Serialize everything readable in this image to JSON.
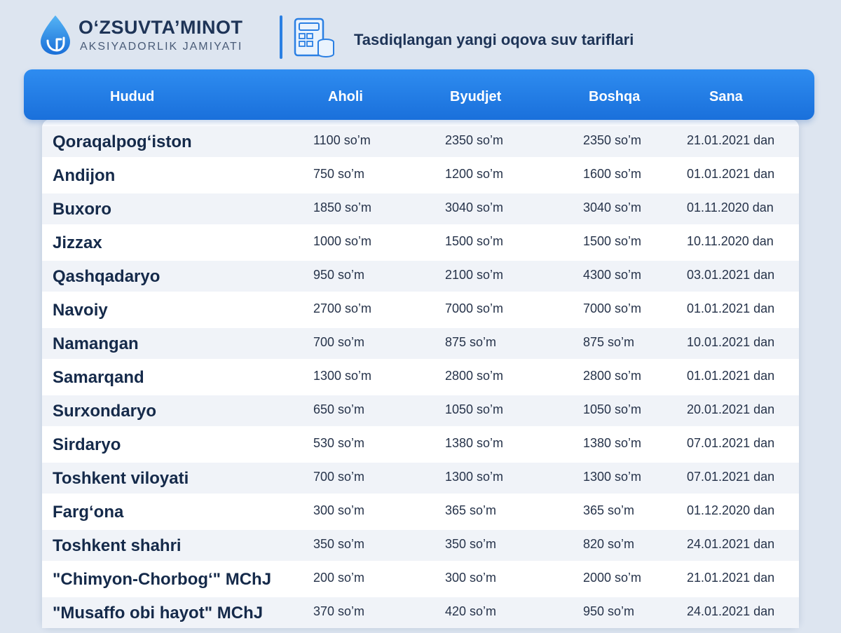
{
  "brand": {
    "name": "O‘ZSUVTA’MINOT",
    "subtitle": "AKSIYADORLIK JAMIYATI",
    "colors": {
      "primary": "#1e3457",
      "accent": "#2a7fe3"
    }
  },
  "page_title": "Tasdiqlangan yangi oqova suv tariflari",
  "icons": {
    "logo": "water-drop-logo-icon",
    "title": "calculator-coins-icon"
  },
  "table": {
    "header_color": "#2a86ea",
    "columns": [
      "Hudud",
      "Aholi",
      "Byudjet",
      "Boshqa",
      "Sana"
    ],
    "rows": [
      {
        "region": "Qoraqalpog‘iston",
        "aholi": "1100 so’m",
        "byudjet": "2350 so’m",
        "boshqa": "2350 so’m",
        "sana": "21.01.2021 dan"
      },
      {
        "region": "Andijon",
        "aholi": "750 so’m",
        "byudjet": "1200 so’m",
        "boshqa": "1600 so’m",
        "sana": "01.01.2021 dan"
      },
      {
        "region": "Buxoro",
        "aholi": "1850 so’m",
        "byudjet": "3040 so’m",
        "boshqa": "3040 so’m",
        "sana": "01.11.2020 dan"
      },
      {
        "region": "Jizzax",
        "aholi": "1000 so’m",
        "byudjet": "1500 so’m",
        "boshqa": "1500 so’m",
        "sana": "10.11.2020 dan"
      },
      {
        "region": "Qashqadaryo",
        "aholi": "950 so’m",
        "byudjet": "2100 so’m",
        "boshqa": "4300 so’m",
        "sana": "03.01.2021  dan"
      },
      {
        "region": "Navoiy",
        "aholi": "2700 so’m",
        "byudjet": "7000 so’m",
        "boshqa": "7000 so’m",
        "sana": "01.01.2021 dan"
      },
      {
        "region": "Namangan",
        "aholi": "700 so’m",
        "byudjet": "875 so’m",
        "boshqa": "875 so’m",
        "sana": "10.01.2021 dan"
      },
      {
        "region": "Samarqand",
        "aholi": "1300 so’m",
        "byudjet": "2800 so’m",
        "boshqa": "2800 so’m",
        "sana": "01.01.2021 dan"
      },
      {
        "region": "Surxondaryo",
        "aholi": "650 so’m",
        "byudjet": "1050 so’m",
        "boshqa": "1050 so’m",
        "sana": "20.01.2021 dan"
      },
      {
        "region": "Sirdaryo",
        "aholi": "530 so’m",
        "byudjet": "1380 so’m",
        "boshqa": "1380 so’m",
        "sana": "07.01.2021 dan"
      },
      {
        "region": "Toshkent viloyati",
        "aholi": "700 so’m",
        "byudjet": "1300 so’m",
        "boshqa": "1300 so’m",
        "sana": "07.01.2021 dan"
      },
      {
        "region": "Farg‘ona",
        "aholi": "300 so’m",
        "byudjet": "365 so’m",
        "boshqa": "365 so’m",
        "sana": "01.12.2020 dan"
      },
      {
        "region": "Toshkent shahri",
        "aholi": "350 so’m",
        "byudjet": "350 so’m",
        "boshqa": "820 so’m",
        "sana": "24.01.2021 dan"
      },
      {
        "region": "\"Chimyon-Chorbog‘\" MChJ",
        "aholi": "200 so’m",
        "byudjet": "300 so’m",
        "boshqa": "2000 so’m",
        "sana": "21.01.2021 dan"
      },
      {
        "region": "\"Musaffo obi hayot\" MChJ",
        "aholi": "370 so’m",
        "byudjet": "420 so’m",
        "boshqa": "950 so’m",
        "sana": "24.01.2021 dan"
      }
    ]
  }
}
